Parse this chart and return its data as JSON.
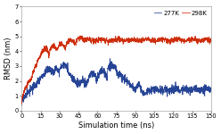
{
  "title": "",
  "xlabel": "Simulation time (ns)",
  "ylabel": "RMSD (nm)",
  "xlim": [
    0,
    150
  ],
  "ylim": [
    0,
    7
  ],
  "xticks": [
    0,
    15,
    30,
    45,
    60,
    75,
    90,
    105,
    120,
    135,
    150
  ],
  "yticks": [
    0,
    1,
    2,
    3,
    4,
    5,
    6,
    7
  ],
  "color_277": "#1a3a8f",
  "color_298": "#cc2200",
  "label_277": "277K",
  "label_298": "298K",
  "linewidth": 0.55,
  "background_color": "#ffffff",
  "legend_fontsize": 5.0,
  "axis_fontsize": 6.0,
  "tick_fontsize": 4.8
}
